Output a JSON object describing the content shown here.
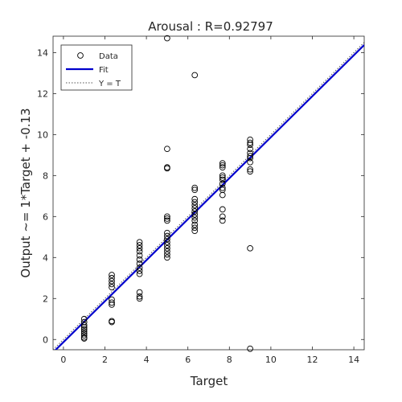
{
  "chart_data": {
    "type": "scatter",
    "title": "Arousal : R=0.92797",
    "xlabel": "Target",
    "ylabel": "Output ~= 1*Target + -0.13",
    "xlim": [
      -0.5,
      14.5
    ],
    "ylim": [
      -0.5,
      14.8
    ],
    "xticks": [
      0,
      2,
      4,
      6,
      8,
      10,
      12,
      14
    ],
    "yticks": [
      0,
      2,
      4,
      6,
      8,
      10,
      12,
      14
    ],
    "grid": false,
    "legend": {
      "placement": "top-left",
      "entries": [
        {
          "label": "Data",
          "style": "marker"
        },
        {
          "label": "Fit",
          "style": "solid-line"
        },
        {
          "label": "Y = T",
          "style": "dotted-line"
        }
      ]
    },
    "colors": {
      "data": "#000000",
      "fit": "#0000cc",
      "identity": "#555555",
      "axis": "#262626"
    },
    "series": [
      {
        "name": "Data",
        "points": [
          [
            1.0,
            1.0
          ],
          [
            1.0,
            0.85
          ],
          [
            1.0,
            0.7
          ],
          [
            1.0,
            0.6
          ],
          [
            1.0,
            0.5
          ],
          [
            1.0,
            0.4
          ],
          [
            1.0,
            0.3
          ],
          [
            1.0,
            0.2
          ],
          [
            1.0,
            0.1
          ],
          [
            1.0,
            0.05
          ],
          [
            2.33,
            3.15
          ],
          [
            2.33,
            3.0
          ],
          [
            2.33,
            2.85
          ],
          [
            2.33,
            2.7
          ],
          [
            2.33,
            2.55
          ],
          [
            2.33,
            1.95
          ],
          [
            2.33,
            1.8
          ],
          [
            2.33,
            1.7
          ],
          [
            2.33,
            0.9
          ],
          [
            2.33,
            0.85
          ],
          [
            3.67,
            4.75
          ],
          [
            3.67,
            4.6
          ],
          [
            3.67,
            4.45
          ],
          [
            3.67,
            4.3
          ],
          [
            3.67,
            4.1
          ],
          [
            3.67,
            3.9
          ],
          [
            3.67,
            3.7
          ],
          [
            3.67,
            3.5
          ],
          [
            3.67,
            3.35
          ],
          [
            3.67,
            3.2
          ],
          [
            3.67,
            2.3
          ],
          [
            3.67,
            2.1
          ],
          [
            3.67,
            2.0
          ],
          [
            5.0,
            14.7
          ],
          [
            5.0,
            9.3
          ],
          [
            5.0,
            8.4
          ],
          [
            5.0,
            8.35
          ],
          [
            5.0,
            6.0
          ],
          [
            5.0,
            5.9
          ],
          [
            5.0,
            5.8
          ],
          [
            5.0,
            5.2
          ],
          [
            5.0,
            5.05
          ],
          [
            5.0,
            4.9
          ],
          [
            5.0,
            4.75
          ],
          [
            5.0,
            4.6
          ],
          [
            5.0,
            4.45
          ],
          [
            5.0,
            4.3
          ],
          [
            5.0,
            4.15
          ],
          [
            5.0,
            4.0
          ],
          [
            6.33,
            12.9
          ],
          [
            6.33,
            7.4
          ],
          [
            6.33,
            7.3
          ],
          [
            6.33,
            6.85
          ],
          [
            6.33,
            6.7
          ],
          [
            6.33,
            6.55
          ],
          [
            6.33,
            6.4
          ],
          [
            6.33,
            6.25
          ],
          [
            6.33,
            6.1
          ],
          [
            6.33,
            5.95
          ],
          [
            6.33,
            5.8
          ],
          [
            6.33,
            5.6
          ],
          [
            6.33,
            5.45
          ],
          [
            6.33,
            5.3
          ],
          [
            7.67,
            8.6
          ],
          [
            7.67,
            8.5
          ],
          [
            7.67,
            8.4
          ],
          [
            7.67,
            8.0
          ],
          [
            7.67,
            7.9
          ],
          [
            7.67,
            7.8
          ],
          [
            7.67,
            7.6
          ],
          [
            7.67,
            7.4
          ],
          [
            7.67,
            7.3
          ],
          [
            7.67,
            7.05
          ],
          [
            7.67,
            6.35
          ],
          [
            7.67,
            6.0
          ],
          [
            7.67,
            5.8
          ],
          [
            9.0,
            9.75
          ],
          [
            9.0,
            9.6
          ],
          [
            9.0,
            9.5
          ],
          [
            9.0,
            9.3
          ],
          [
            9.0,
            9.1
          ],
          [
            9.0,
            8.95
          ],
          [
            9.0,
            8.85
          ],
          [
            9.0,
            8.65
          ],
          [
            9.0,
            8.3
          ],
          [
            9.0,
            8.2
          ],
          [
            9.0,
            4.45
          ],
          [
            9.0,
            -0.45
          ]
        ]
      },
      {
        "name": "Fit",
        "line": {
          "slope": 1.0,
          "intercept": -0.13
        }
      },
      {
        "name": "Y = T",
        "line": {
          "slope": 1.0,
          "intercept": 0.0
        }
      }
    ]
  }
}
